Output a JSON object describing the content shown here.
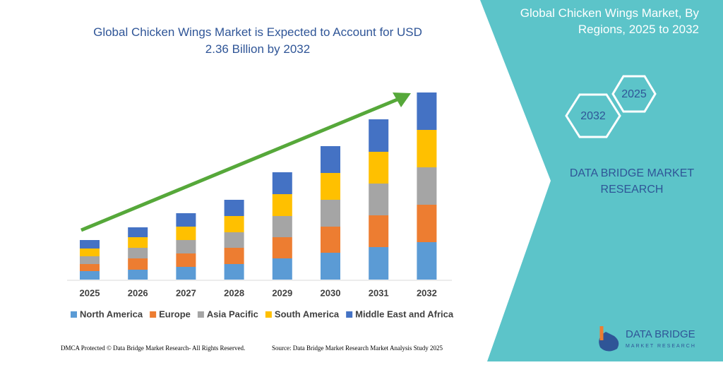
{
  "chart_data": {
    "type": "stacked_bar",
    "title": "Global Chicken Wings Market is Expected to Account for USD 2.36 Billion by 2032",
    "categories": [
      "2025",
      "2026",
      "2027",
      "2028",
      "2029",
      "2030",
      "2031",
      "2032"
    ],
    "series": [
      {
        "name": "North America",
        "color": "#5b9bd5",
        "values": [
          12,
          14,
          18,
          22,
          30,
          38,
          46,
          53
        ]
      },
      {
        "name": "Europe",
        "color": "#ed7d31",
        "values": [
          10,
          16,
          19,
          23,
          30,
          37,
          45,
          53
        ]
      },
      {
        "name": "Asia Pacific",
        "color": "#a5a5a5",
        "values": [
          11,
          15,
          19,
          22,
          30,
          38,
          45,
          53
        ]
      },
      {
        "name": "South America",
        "color": "#ffc000",
        "values": [
          11,
          15,
          19,
          23,
          31,
          38,
          45,
          53
        ]
      },
      {
        "name": "Middle East and Africa",
        "color": "#4472c4",
        "values": [
          12,
          14,
          19,
          23,
          31,
          38,
          46,
          53
        ]
      }
    ],
    "ylim": [
      0,
      265
    ]
  },
  "panel": {
    "title": "Global Chicken Wings Market, By Regions, 2025 to 2032",
    "hex_start": "2025",
    "hex_end": "2032",
    "brand": "DATA BRIDGE MARKET RESEARCH"
  },
  "logo": {
    "name": "DATA BRIDGE",
    "tagline": "MARKET RESEARCH"
  },
  "footer": {
    "left": "DMCA Protected © Data Bridge Market Research- All Rights Reserved.",
    "right": "Source: Data Bridge Market Research Market Analysis Study 2025"
  }
}
